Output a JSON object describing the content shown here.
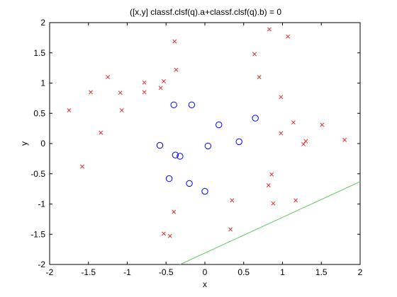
{
  "chart_data": {
    "type": "scatter",
    "title": "([x,y] classf.clsf(q).a+classf.clsf(q).b) = 0",
    "xlabel": "x",
    "ylabel": "y",
    "xlim": [
      -2,
      2
    ],
    "ylim": [
      -2,
      2
    ],
    "xticks": [
      -2,
      -1.5,
      -1,
      -0.5,
      0,
      0.5,
      1,
      1.5,
      2
    ],
    "yticks": [
      -2,
      -1.5,
      -1,
      -0.5,
      0,
      0.5,
      1,
      1.5,
      2
    ],
    "xtick_labels": [
      "-2",
      "-1.5",
      "-1",
      "-0.5",
      "0",
      "0.5",
      "1",
      "1.5",
      "2"
    ],
    "ytick_labels": [
      "-2",
      "-1.5",
      "-1",
      "-0.5",
      "0",
      "0.5",
      "1",
      "1.5",
      "2"
    ],
    "grid": false,
    "colors": {
      "cross": "#e03030",
      "circle": "#0000ff",
      "line": "#66cc66",
      "axes": "#000000",
      "background": "#ffffff"
    },
    "series": [
      {
        "marker": "x",
        "points": [
          [
            -1.75,
            0.55
          ],
          [
            -1.58,
            -0.38
          ],
          [
            -1.47,
            0.85
          ],
          [
            -1.34,
            0.18
          ],
          [
            -1.25,
            1.1
          ],
          [
            -1.09,
            0.84
          ],
          [
            -1.07,
            0.55
          ],
          [
            -0.78,
            1.01
          ],
          [
            -0.78,
            0.85
          ],
          [
            -0.57,
            0.92
          ],
          [
            -0.53,
            1.03
          ],
          [
            -0.39,
            1.69
          ],
          [
            -0.37,
            1.22
          ],
          [
            -0.53,
            -1.49
          ],
          [
            -0.45,
            -1.53
          ],
          [
            -0.4,
            -1.13
          ],
          [
            0.35,
            -0.94
          ],
          [
            0.33,
            -1.42
          ],
          [
            0.64,
            1.48
          ],
          [
            0.7,
            1.1
          ],
          [
            0.83,
            1.89
          ],
          [
            1.07,
            1.77
          ],
          [
            0.98,
            0.77
          ],
          [
            1.14,
            0.35
          ],
          [
            0.98,
            0.17
          ],
          [
            1.27,
            -0.01
          ],
          [
            1.3,
            0.04
          ],
          [
            1.51,
            0.31
          ],
          [
            1.8,
            0.06
          ],
          [
            0.86,
            -0.51
          ],
          [
            0.82,
            -0.69
          ],
          [
            0.88,
            -0.99
          ],
          [
            1.17,
            -0.94
          ]
        ]
      },
      {
        "marker": "o",
        "points": [
          [
            -0.4,
            0.64
          ],
          [
            -0.17,
            0.64
          ],
          [
            -0.58,
            -0.03
          ],
          [
            -0.38,
            -0.19
          ],
          [
            -0.32,
            -0.21
          ],
          [
            -0.46,
            -0.58
          ],
          [
            -0.2,
            -0.66
          ],
          [
            0.0,
            -0.79
          ],
          [
            0.18,
            0.31
          ],
          [
            0.04,
            -0.04
          ],
          [
            0.44,
            0.03
          ],
          [
            0.65,
            0.42
          ]
        ]
      },
      {
        "marker": "line",
        "points": [
          [
            -0.32,
            -2.0
          ],
          [
            2.0,
            -0.63
          ]
        ]
      }
    ]
  }
}
